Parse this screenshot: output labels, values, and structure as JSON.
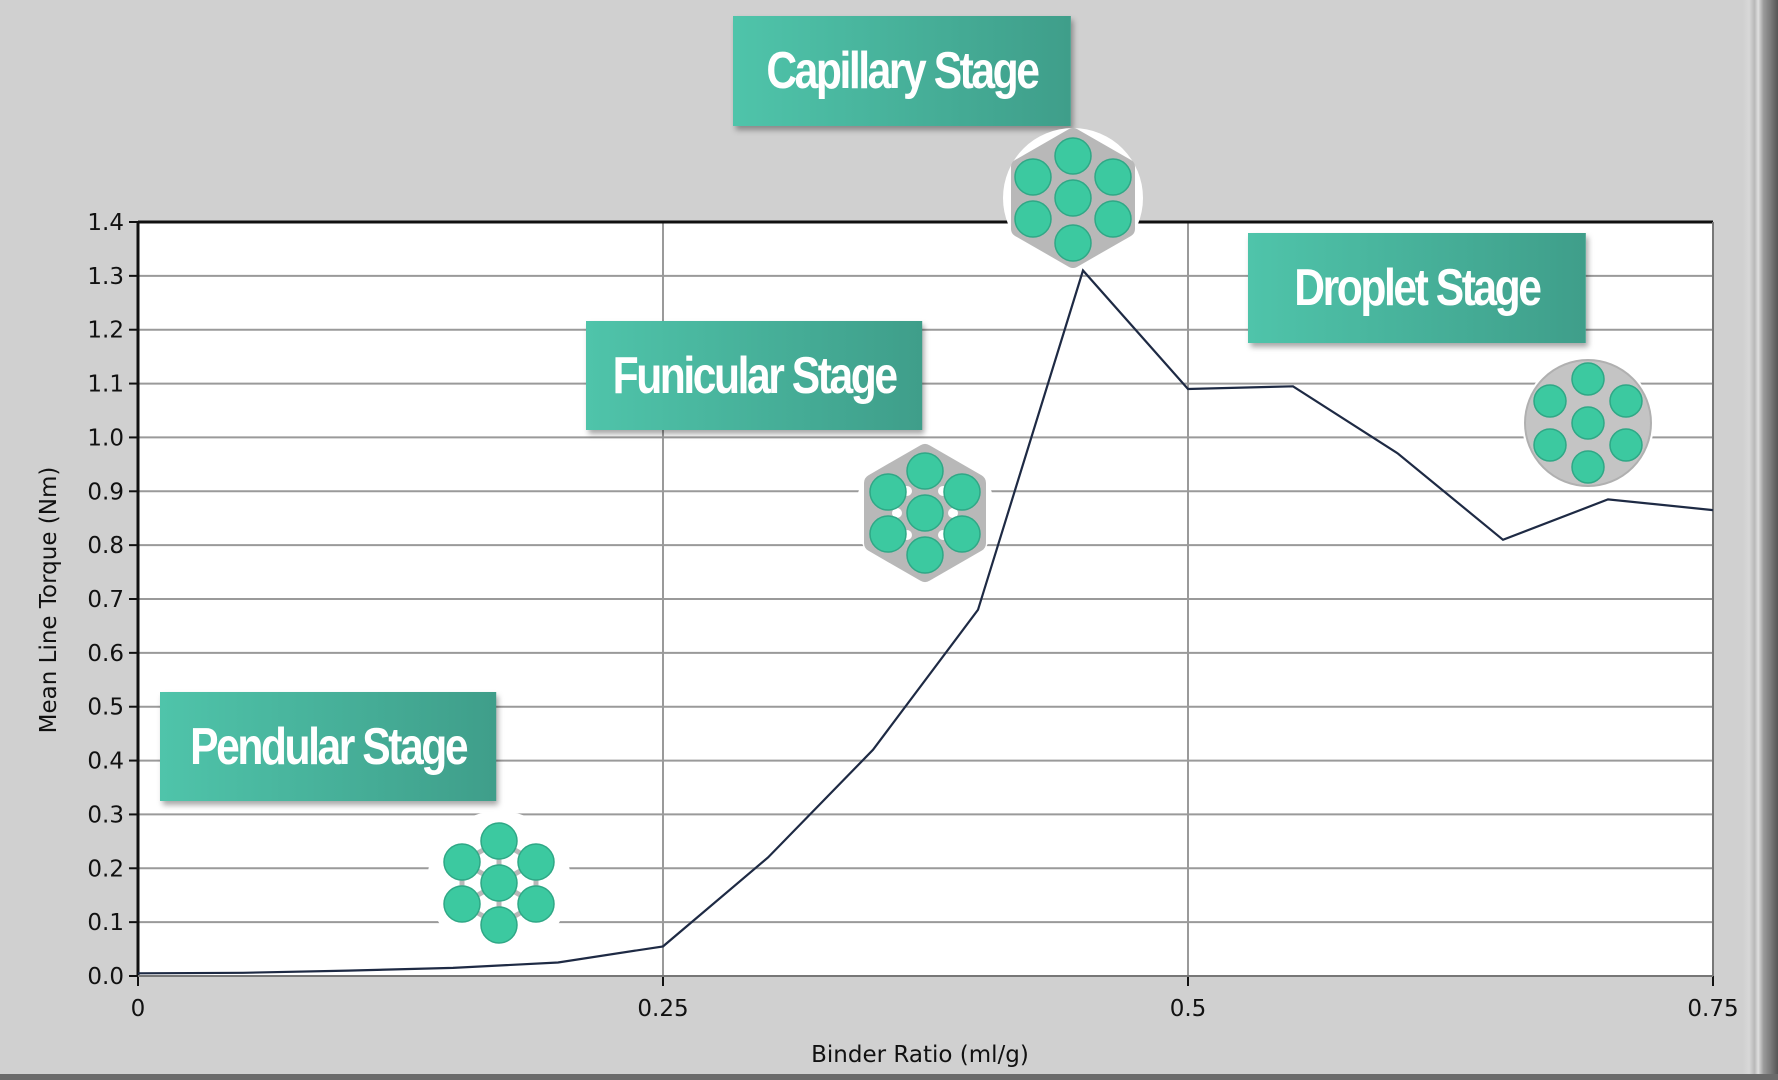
{
  "colors": {
    "background": "#d0d0d0",
    "plot_bg": "#ffffff",
    "grid": "#9a9a9a",
    "line": "#1e2a44",
    "label_start": "#4fc4aa",
    "label_end": "#3f9e8a",
    "particle": "#3cc9a0",
    "particle_edge": "#2fa886",
    "binder": "#bdbdbd"
  },
  "labels": {
    "pendular": "Pendular Stage",
    "funicular": "Funicular Stage",
    "capillary": "Capillary Stage",
    "droplet": "Droplet Stage"
  },
  "icons": {
    "pendular": "pendular-particle-cluster-icon",
    "funicular": "funicular-particle-cluster-icon",
    "capillary": "capillary-particle-cluster-icon",
    "droplet": "droplet-particle-cluster-icon"
  },
  "chart_data": {
    "type": "line",
    "title": "",
    "xlabel": "Binder Ratio (ml/g)",
    "ylabel": "Mean Line Torque (Nm)",
    "xlim": [
      0,
      0.75
    ],
    "ylim": [
      0,
      1.4
    ],
    "x_ticks": [
      "0",
      "0.25",
      "0.5",
      "0.75"
    ],
    "y_ticks": [
      "0.0",
      "0.1",
      "0.2",
      "0.3",
      "0.4",
      "0.5",
      "0.6",
      "0.7",
      "0.8",
      "0.9",
      "1.0",
      "1.1",
      "1.2",
      "1.3",
      "1.4"
    ],
    "grid": true,
    "legend": null,
    "series": [
      {
        "name": "Mean Line Torque",
        "x": [
          0,
          0.05,
          0.1,
          0.15,
          0.2,
          0.25,
          0.3,
          0.35,
          0.4,
          0.45,
          0.5,
          0.55,
          0.6,
          0.65,
          0.7,
          0.75
        ],
        "y": [
          0.005,
          0.006,
          0.01,
          0.015,
          0.025,
          0.055,
          0.22,
          0.42,
          0.68,
          1.31,
          1.09,
          1.095,
          0.97,
          0.81,
          0.885,
          0.865
        ]
      }
    ],
    "annotations": [
      {
        "text": "Pendular Stage",
        "x": 0.09,
        "y": 0.45
      },
      {
        "text": "Funicular Stage",
        "x": 0.3,
        "y": 1.1
      },
      {
        "text": "Capillary Stage",
        "x": 0.36,
        "y": 1.75
      },
      {
        "text": "Droplet Stage",
        "x": 0.61,
        "y": 1.25
      }
    ]
  }
}
